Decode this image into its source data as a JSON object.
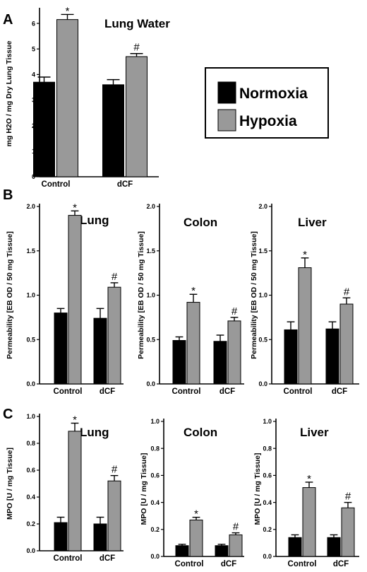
{
  "panel_labels": [
    "A",
    "B",
    "C"
  ],
  "legend": {
    "items": [
      {
        "label": "Normoxia",
        "color": "#000000"
      },
      {
        "label": "Hypoxia",
        "color": "#999999"
      }
    ]
  },
  "colors": {
    "normoxia": "#000000",
    "hypoxia": "#999999"
  },
  "chart_data": [
    {
      "id": "A-lung-water",
      "type": "bar",
      "title": "Lung Water",
      "ylabel": "mg H2O / mg Dry Lung Tissue",
      "ylim": [
        0,
        6.5
      ],
      "yticks": [
        "0",
        "1",
        "2",
        "3",
        "4",
        "5",
        "6"
      ],
      "categories": [
        "Control",
        "dCF"
      ],
      "series": [
        {
          "name": "Normoxia",
          "values": [
            3.7,
            3.6
          ],
          "errors": [
            0.2,
            0.2
          ],
          "marks": [
            "",
            ""
          ]
        },
        {
          "name": "Hypoxia",
          "values": [
            6.15,
            4.7
          ],
          "errors": [
            0.2,
            0.12
          ],
          "marks": [
            "*",
            "#"
          ]
        }
      ]
    },
    {
      "id": "B-lung",
      "type": "bar",
      "title": "Lung",
      "ylabel": "Permeability [EB OD / 50 mg Tissue]",
      "ylim": [
        0,
        2.0
      ],
      "yticks": [
        "0.0",
        "0.5",
        "1.0",
        "1.5",
        "2.0"
      ],
      "categories": [
        "Control",
        "dCF"
      ],
      "series": [
        {
          "name": "Normoxia",
          "values": [
            0.8,
            0.74
          ],
          "errors": [
            0.05,
            0.11
          ],
          "marks": [
            "",
            ""
          ]
        },
        {
          "name": "Hypoxia",
          "values": [
            1.9,
            1.09
          ],
          "errors": [
            0.05,
            0.05
          ],
          "marks": [
            "*",
            "#"
          ]
        }
      ]
    },
    {
      "id": "B-colon",
      "type": "bar",
      "title": "Colon",
      "ylabel": "Permeability [EB OD / 50 mg Tissue]",
      "ylim": [
        0,
        2.0
      ],
      "yticks": [
        "0.0",
        "0.5",
        "1.0",
        "1.5",
        "2.0"
      ],
      "categories": [
        "Control",
        "dCF"
      ],
      "series": [
        {
          "name": "Normoxia",
          "values": [
            0.49,
            0.48
          ],
          "errors": [
            0.04,
            0.07
          ],
          "marks": [
            "",
            ""
          ]
        },
        {
          "name": "Hypoxia",
          "values": [
            0.92,
            0.71
          ],
          "errors": [
            0.09,
            0.04
          ],
          "marks": [
            "*",
            "#"
          ]
        }
      ]
    },
    {
      "id": "B-liver",
      "type": "bar",
      "title": "Liver",
      "ylabel": "Permeability [EB OD / 50 mg Tissue]",
      "ylim": [
        0,
        2.0
      ],
      "yticks": [
        "0.0",
        "0.5",
        "1.0",
        "1.5",
        "2.0"
      ],
      "categories": [
        "Control",
        "dCF"
      ],
      "series": [
        {
          "name": "Normoxia",
          "values": [
            0.61,
            0.62
          ],
          "errors": [
            0.09,
            0.08
          ],
          "marks": [
            "",
            ""
          ]
        },
        {
          "name": "Hypoxia",
          "values": [
            1.31,
            0.9
          ],
          "errors": [
            0.11,
            0.07
          ],
          "marks": [
            "*",
            "#"
          ]
        }
      ]
    },
    {
      "id": "C-lung",
      "type": "bar",
      "title": "Lung",
      "ylabel": "MPO [U / mg Tissue]",
      "ylim": [
        0,
        1.0
      ],
      "yticks": [
        "0.0",
        "0.2",
        "0.4",
        "0.6",
        "0.8",
        "1.0"
      ],
      "categories": [
        "Control",
        "dCF"
      ],
      "series": [
        {
          "name": "Normoxia",
          "values": [
            0.21,
            0.2
          ],
          "errors": [
            0.04,
            0.05
          ],
          "marks": [
            "",
            ""
          ]
        },
        {
          "name": "Hypoxia",
          "values": [
            0.89,
            0.52
          ],
          "errors": [
            0.06,
            0.04
          ],
          "marks": [
            "*",
            "#"
          ]
        }
      ]
    },
    {
      "id": "C-colon",
      "type": "bar",
      "title": "Colon",
      "ylabel": "MPO [U / mg Tissue]",
      "ylim": [
        0,
        1.0
      ],
      "yticks": [
        "0.0",
        "0.2",
        "0.4",
        "0.6",
        "0.8",
        "1.0"
      ],
      "categories": [
        "Control",
        "dCF"
      ],
      "series": [
        {
          "name": "Normoxia",
          "values": [
            0.08,
            0.08
          ],
          "errors": [
            0.01,
            0.01
          ],
          "marks": [
            "",
            ""
          ]
        },
        {
          "name": "Hypoxia",
          "values": [
            0.27,
            0.16
          ],
          "errors": [
            0.02,
            0.015
          ],
          "marks": [
            "*",
            "#"
          ]
        }
      ]
    },
    {
      "id": "C-liver",
      "type": "bar",
      "title": "Liver",
      "ylabel": "MPO [U / mg Tissue]",
      "ylim": [
        0,
        1.0
      ],
      "yticks": [
        "0.0",
        "0.2",
        "0.4",
        "0.6",
        "0.8",
        "1.0"
      ],
      "categories": [
        "Control",
        "dCF"
      ],
      "series": [
        {
          "name": "Normoxia",
          "values": [
            0.14,
            0.14
          ],
          "errors": [
            0.02,
            0.02
          ],
          "marks": [
            "",
            ""
          ]
        },
        {
          "name": "Hypoxia",
          "values": [
            0.51,
            0.36
          ],
          "errors": [
            0.04,
            0.04
          ],
          "marks": [
            "*",
            "#"
          ]
        }
      ]
    }
  ]
}
